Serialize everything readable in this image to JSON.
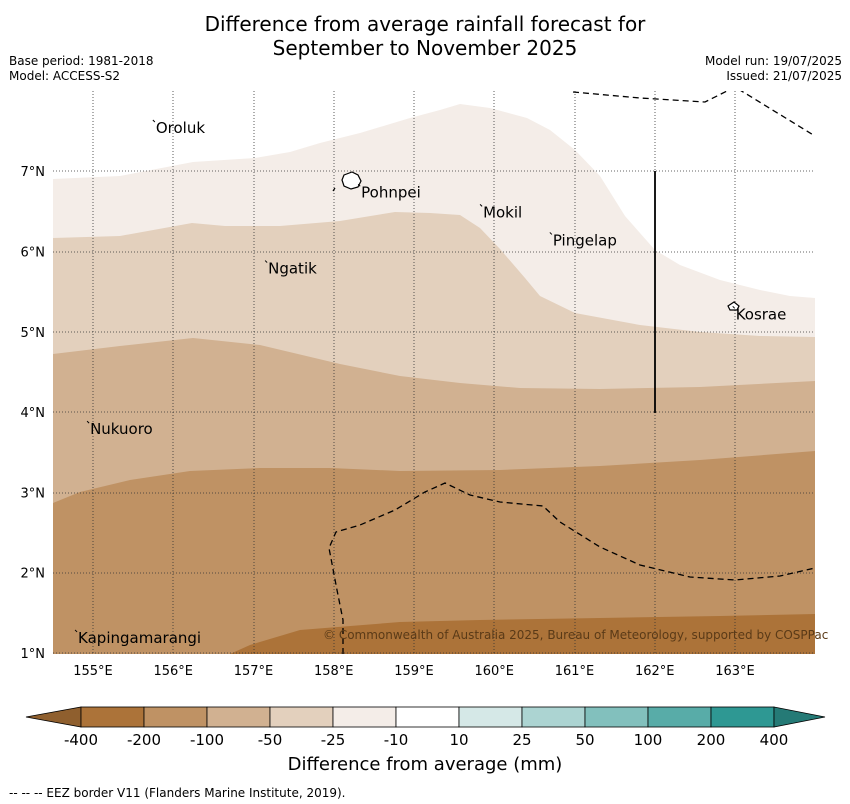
{
  "title_line1": "Difference from average rainfall forecast for",
  "title_line2": "September to November 2025",
  "meta_left": {
    "base_period": "Base period: 1981-2018",
    "model": "Model: ACCESS-S2"
  },
  "meta_right": {
    "model_run": "Model run: 19/07/2025",
    "issued": "Issued: 21/07/2025"
  },
  "axes": {
    "lon_ticks": [
      "155°E",
      "156°E",
      "157°E",
      "158°E",
      "159°E",
      "160°E",
      "161°E",
      "162°E",
      "163°E"
    ],
    "lat_ticks": [
      "1°N",
      "2°N",
      "3°N",
      "4°N",
      "5°N",
      "6°N",
      "7°N"
    ]
  },
  "places": [
    {
      "name": "Oroluk",
      "lon": 155.77,
      "lat": 7.6
    },
    {
      "name": "Pohnpei",
      "lon": 158.33,
      "lat": 6.8
    },
    {
      "name": "Mokil",
      "lon": 159.85,
      "lat": 6.55
    },
    {
      "name": "Pingelap",
      "lon": 160.72,
      "lat": 6.2
    },
    {
      "name": "Ngatik",
      "lon": 157.17,
      "lat": 5.85
    },
    {
      "name": "Kosrae",
      "lon": 163.0,
      "lat": 5.28
    },
    {
      "name": "Nukuoro",
      "lon": 154.95,
      "lat": 3.85
    },
    {
      "name": "Kapingamarangi",
      "lon": 154.8,
      "lat": 1.25
    }
  ],
  "colorbar": {
    "labels": [
      "-400",
      "-200",
      "-100",
      "-50",
      "-25",
      "-10",
      "10",
      "25",
      "50",
      "100",
      "200",
      "400"
    ],
    "colors": [
      "#ac7339",
      "#bf9264",
      "#d1b191",
      "#e3d0bd",
      "#f4ede8",
      "#ffffff",
      "#d5e8e7",
      "#acd4d2",
      "#82c0bd",
      "#58aca8",
      "#2e9893"
    ],
    "under_color": "#8f5f2e",
    "over_color": "#257a76",
    "title": "Difference from average (mm)"
  },
  "map_colors": {
    "lt_minus200": "#ac7339",
    "minus200_100": "#bf9264",
    "minus100_50": "#d1b191",
    "minus50_25": "#e3d0bd",
    "minus25_10": "#f4ede8"
  },
  "copyright": "© Commonwealth of Australia 2025, Bureau of Meteorology, supported by COSPPac",
  "footnote": "--  --  -- EEZ border V11 (Flanders Marine Institute, 2019)."
}
